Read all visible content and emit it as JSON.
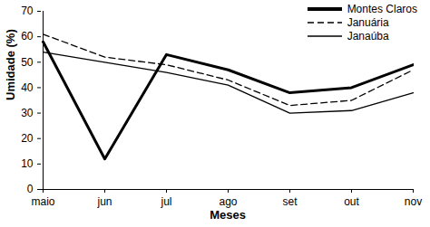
{
  "chart_data": {
    "type": "line",
    "x_label": "Meses",
    "y_label": "Umidade (%)",
    "categories": [
      "maio",
      "jun",
      "jul",
      "ago",
      "set",
      "out",
      "nov"
    ],
    "series": [
      {
        "name": "Montes Claros",
        "color": "#000000",
        "line_style": "solid",
        "values": [
          58,
          12,
          53,
          47,
          38,
          40,
          49
        ]
      },
      {
        "name": "Januária",
        "color": "#000000",
        "line_style": "dashed",
        "values": [
          61,
          52,
          49,
          43,
          33,
          35,
          47
        ]
      },
      {
        "name": "Janaúba",
        "color": "#000000",
        "line_style": "solid",
        "values": [
          54,
          50,
          46,
          41,
          30,
          31,
          38
        ]
      }
    ],
    "ylim": [
      0,
      70
    ],
    "yticks": [
      0,
      10,
      20,
      30,
      40,
      50,
      60,
      70
    ],
    "grid": false,
    "legend": "top-right"
  }
}
